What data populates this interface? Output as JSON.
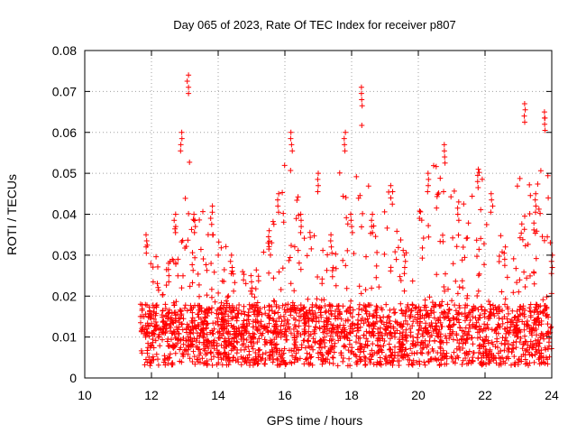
{
  "chart_data": {
    "type": "scatter",
    "title": "Day 065 of 2023, Rate Of TEC Index for receiver p807",
    "xlabel": "GPS time / hours",
    "ylabel": "ROTI / TECUs",
    "xlim": [
      10,
      24
    ],
    "ylim": [
      0,
      0.08
    ],
    "x_ticks": [
      "10",
      "12",
      "14",
      "16",
      "18",
      "20",
      "22",
      "24"
    ],
    "y_ticks": [
      "0",
      "0.01",
      "0.02",
      "0.03",
      "0.04",
      "0.05",
      "0.06",
      "0.07",
      "0.08"
    ],
    "grid": true,
    "marker": "+",
    "marker_color": "#ff0000",
    "series_name": "ROTI",
    "data_start_hour": 11.7,
    "data_end_hour": 24.0,
    "baseline_range": [
      0.003,
      0.018
    ],
    "envelope": [
      {
        "x": 11.7,
        "y": 0.018
      },
      {
        "x": 11.85,
        "y": 0.035
      },
      {
        "x": 12.5,
        "y": 0.028
      },
      {
        "x": 12.7,
        "y": 0.04
      },
      {
        "x": 12.9,
        "y": 0.06
      },
      {
        "x": 13.1,
        "y": 0.074
      },
      {
        "x": 13.3,
        "y": 0.04
      },
      {
        "x": 13.8,
        "y": 0.042
      },
      {
        "x": 14.4,
        "y": 0.03
      },
      {
        "x": 15.0,
        "y": 0.025
      },
      {
        "x": 15.5,
        "y": 0.036
      },
      {
        "x": 15.8,
        "y": 0.045
      },
      {
        "x": 16.2,
        "y": 0.06
      },
      {
        "x": 16.5,
        "y": 0.04
      },
      {
        "x": 17.0,
        "y": 0.05
      },
      {
        "x": 17.4,
        "y": 0.035
      },
      {
        "x": 17.8,
        "y": 0.06
      },
      {
        "x": 18.0,
        "y": 0.04
      },
      {
        "x": 18.3,
        "y": 0.071
      },
      {
        "x": 18.6,
        "y": 0.04
      },
      {
        "x": 19.2,
        "y": 0.047
      },
      {
        "x": 19.6,
        "y": 0.03
      },
      {
        "x": 20.3,
        "y": 0.05
      },
      {
        "x": 20.8,
        "y": 0.057
      },
      {
        "x": 21.2,
        "y": 0.043
      },
      {
        "x": 21.8,
        "y": 0.051
      },
      {
        "x": 22.2,
        "y": 0.045
      },
      {
        "x": 22.6,
        "y": 0.032
      },
      {
        "x": 23.2,
        "y": 0.067
      },
      {
        "x": 23.5,
        "y": 0.045
      },
      {
        "x": 23.8,
        "y": 0.065
      },
      {
        "x": 24.0,
        "y": 0.03
      }
    ]
  }
}
